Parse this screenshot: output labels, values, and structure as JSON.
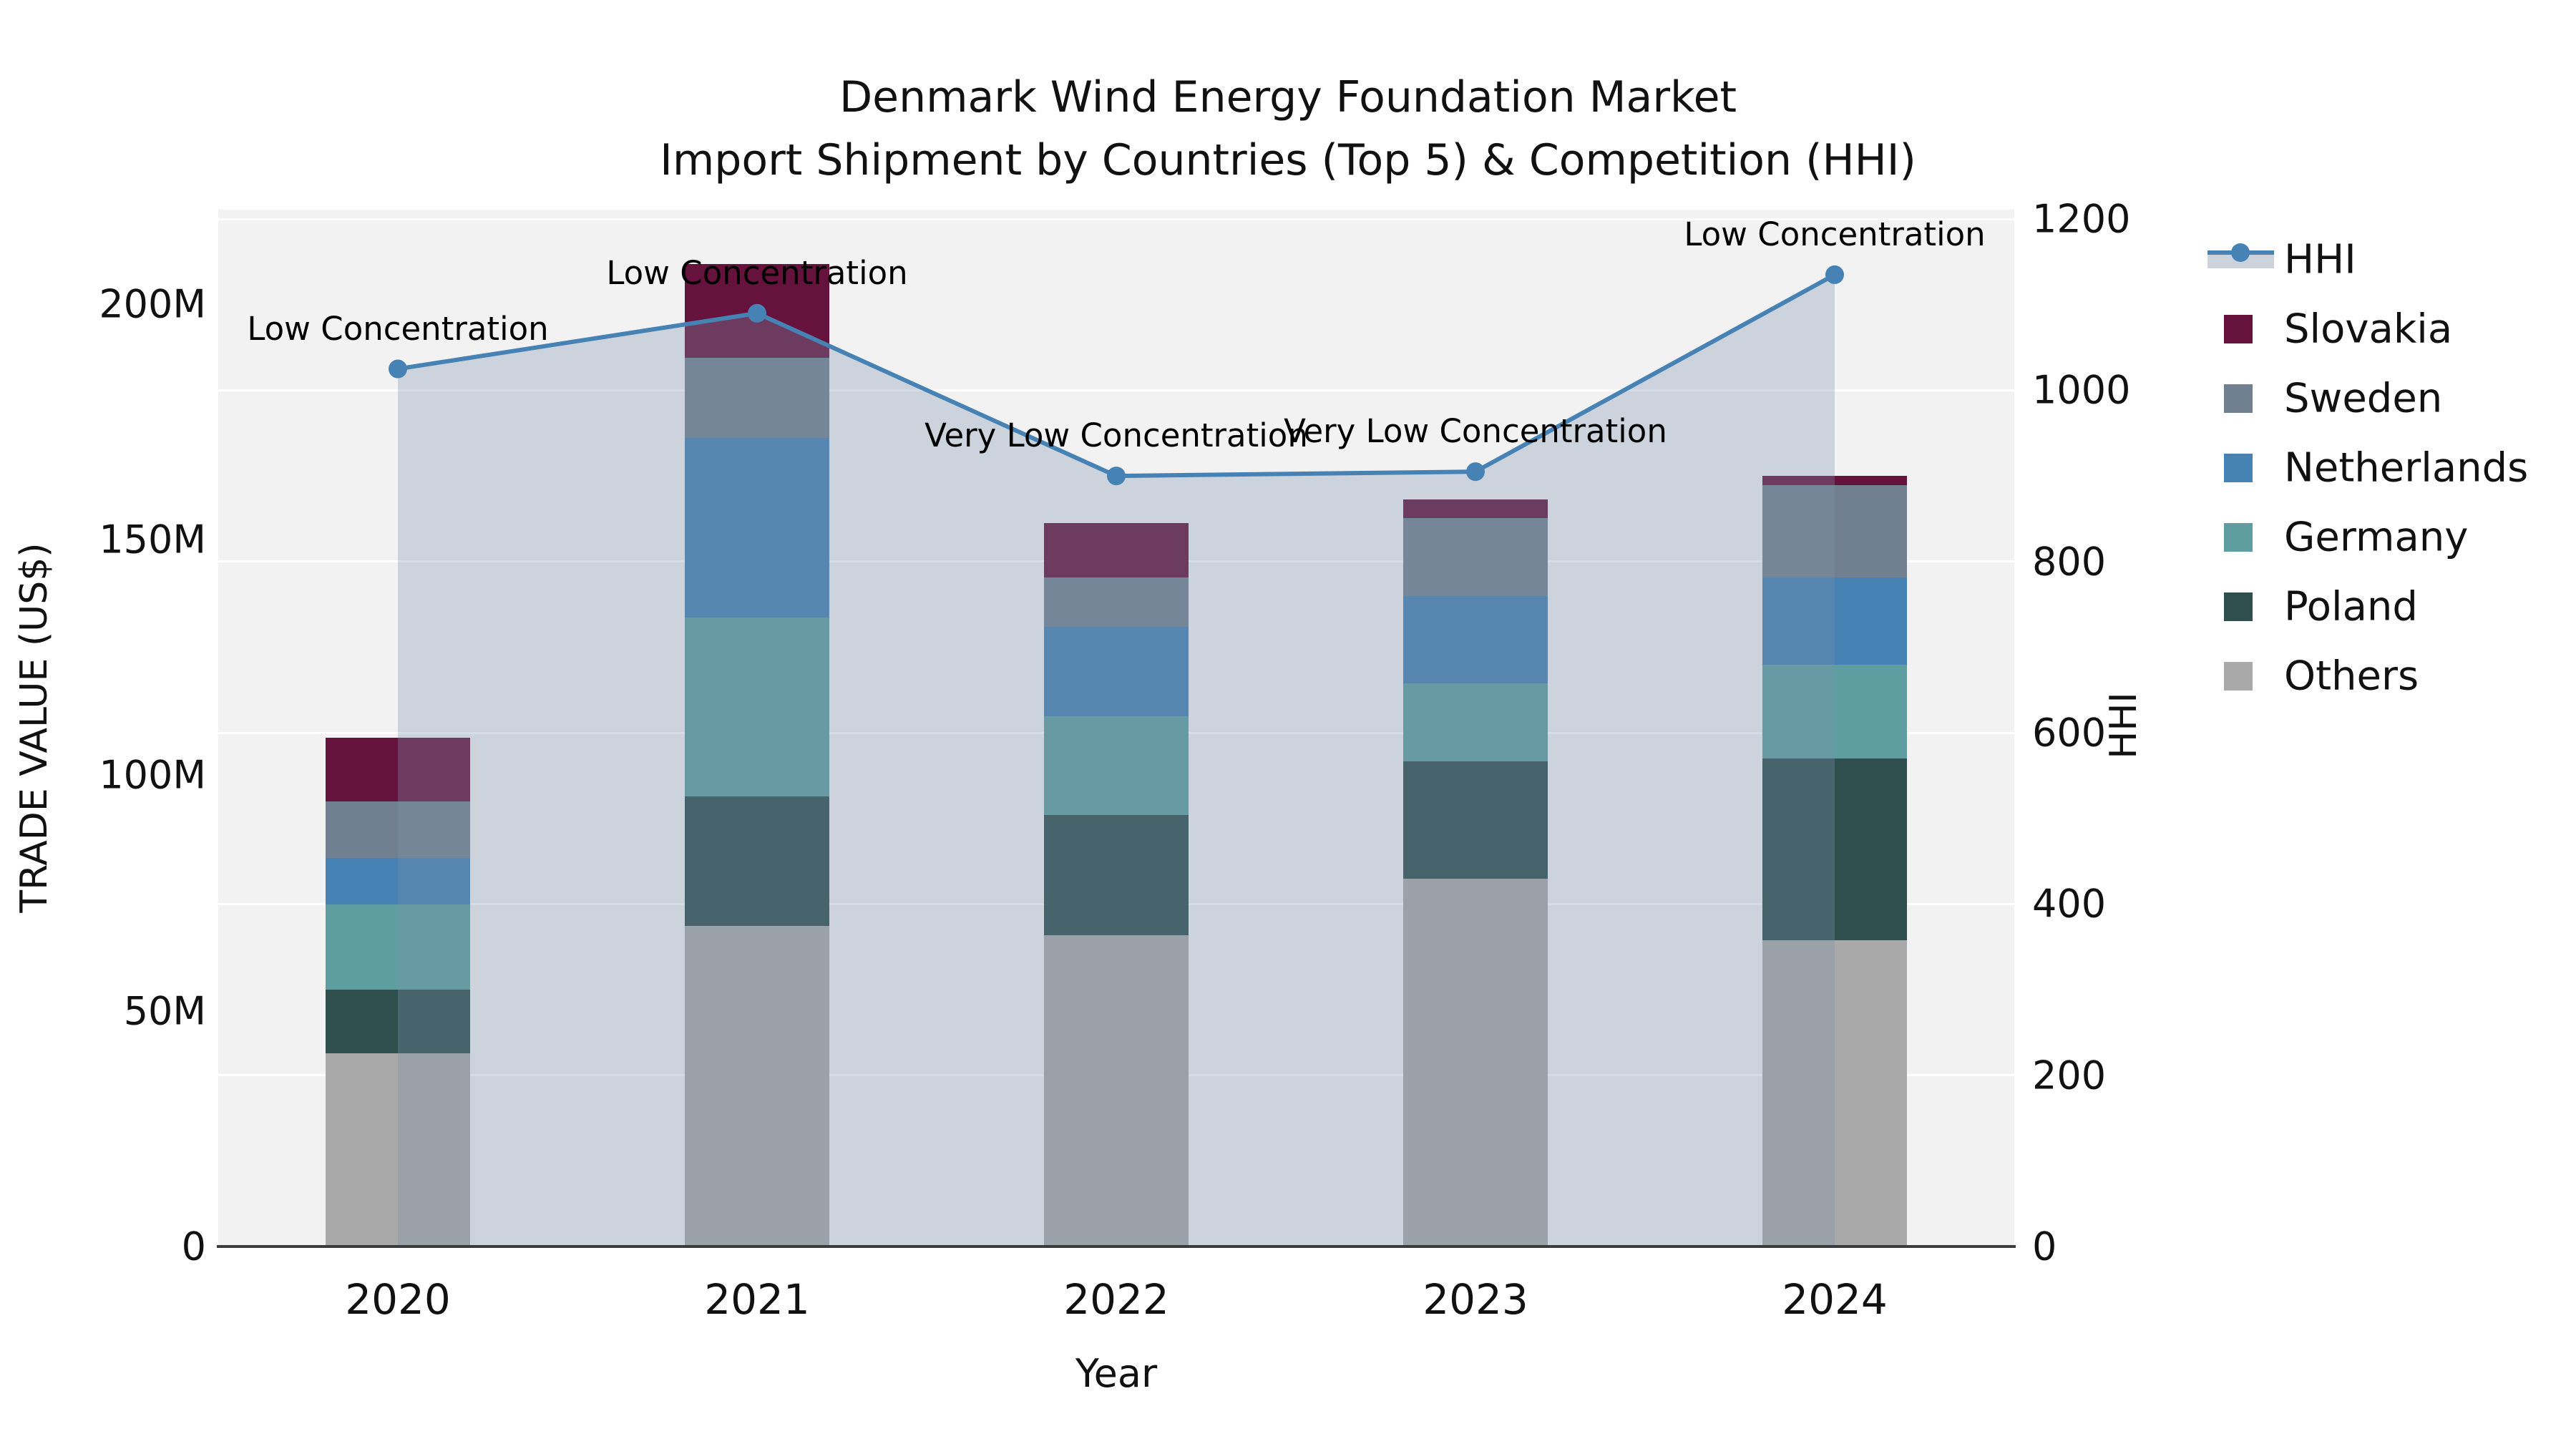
{
  "title": {
    "line1": "Denmark Wind Energy Foundation Market",
    "line2": "Import Shipment by Countries (Top 5) & Competition (HHI)"
  },
  "axes": {
    "x_label": "Year",
    "y_left_label": "TRADE VALUE (US$)",
    "y_right_label": "HHI",
    "y_left_ticks": [
      {
        "value": 0,
        "label": "0"
      },
      {
        "value": 50,
        "label": "50M"
      },
      {
        "value": 100,
        "label": "100M"
      },
      {
        "value": 150,
        "label": "150M"
      },
      {
        "value": 200,
        "label": "200M"
      }
    ],
    "y_left_max": 220,
    "y_right_ticks": [
      {
        "value": 0,
        "label": "0"
      },
      {
        "value": 200,
        "label": "200"
      },
      {
        "value": 400,
        "label": "400"
      },
      {
        "value": 600,
        "label": "600"
      },
      {
        "value": 800,
        "label": "800"
      },
      {
        "value": 1000,
        "label": "1000"
      },
      {
        "value": 1200,
        "label": "1200"
      }
    ],
    "y_right_max": 1211,
    "grid": "horizontal white lines at right-axis (HHI) ticks"
  },
  "chart_data": {
    "type": "bar+line",
    "title": "Denmark Wind Energy Foundation Market — Import Shipment by Countries (Top 5) & Competition (HHI)",
    "categories": [
      "2020",
      "2021",
      "2022",
      "2023",
      "2024"
    ],
    "bar_units": "US$ millions (trade value)",
    "stack_order_bottom_to_top": [
      "Others",
      "Poland",
      "Germany",
      "Netherlands",
      "Sweden",
      "Slovakia"
    ],
    "series": [
      {
        "name": "Others",
        "color": "#a9a9a9",
        "values": [
          41,
          68,
          66,
          78,
          65
        ]
      },
      {
        "name": "Poland",
        "color": "#2f4f4f",
        "values": [
          13.5,
          27.5,
          25.5,
          25,
          38.5
        ]
      },
      {
        "name": "Germany",
        "color": "#5f9ea0",
        "values": [
          18,
          38,
          21,
          16.5,
          20
        ]
      },
      {
        "name": "Netherlands",
        "color": "#4682b4",
        "values": [
          10,
          38,
          19,
          18.5,
          18.5
        ]
      },
      {
        "name": "Sweden",
        "color": "#708090",
        "values": [
          12,
          17,
          10.5,
          16.5,
          19.5
        ]
      },
      {
        "name": "Slovakia",
        "color": "#65123c",
        "values": [
          13.5,
          20,
          11.5,
          4,
          2
        ]
      }
    ],
    "bar_totals": [
      108,
      208.5,
      153.5,
      158.5,
      163.5
    ],
    "hhi": {
      "name": "HHI",
      "color": "#4682b4",
      "values": [
        1025,
        1090,
        900,
        905,
        1135
      ],
      "area_color": "#7d91ab",
      "area_opacity": 0.32,
      "legend_band_color": "#ccd3dc"
    },
    "annotations": [
      "Low Concentration",
      "Low Concentration",
      "Very Low Concentration",
      "Very Low Concentration",
      "Low Concentration"
    ],
    "legend_order": [
      "HHI",
      "Slovakia",
      "Sweden",
      "Netherlands",
      "Germany",
      "Poland",
      "Others"
    ],
    "legend_position": "right, outside plot",
    "xlabel": "Year",
    "ylabel_left": "TRADE VALUE (US$)",
    "ylabel_right": "HHI",
    "ylim_left": [
      0,
      220
    ],
    "ylim_right": [
      0,
      1211
    ],
    "plot_background": "#f2f2f3",
    "figure_background": "#ffffff"
  }
}
